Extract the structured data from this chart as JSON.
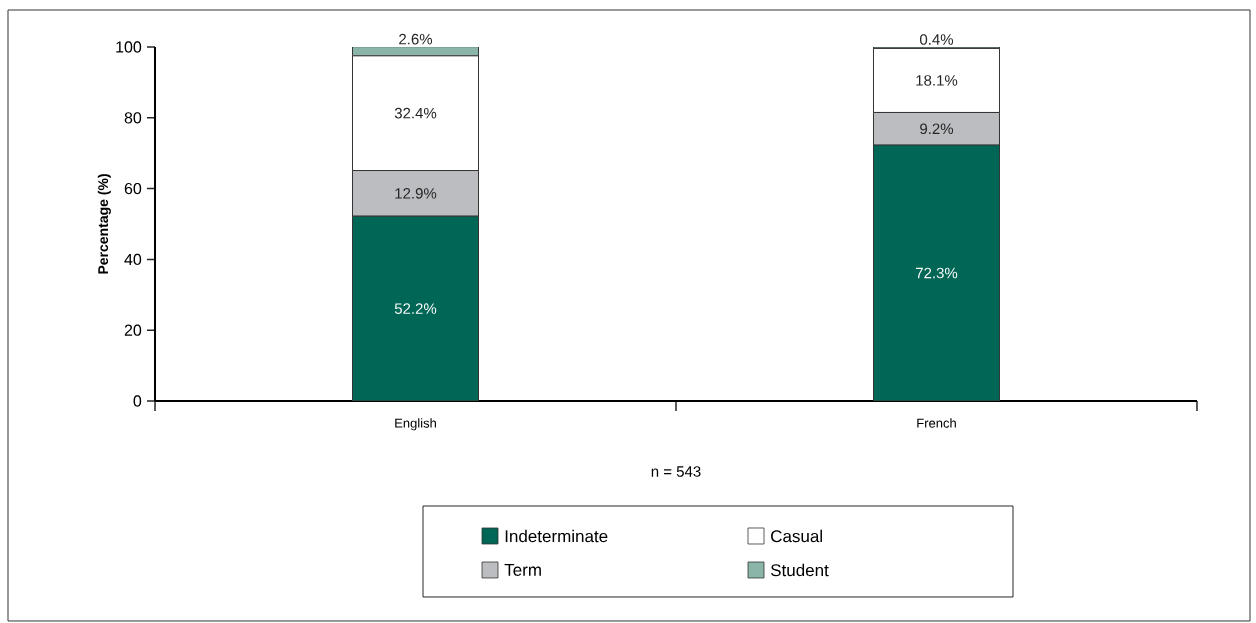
{
  "chart_data": {
    "type": "bar",
    "stacked": true,
    "categories": [
      "English",
      "French"
    ],
    "ylabel": "Percentage (%)",
    "xlabel": "n = 543",
    "ylim": [
      0,
      100
    ],
    "yticks": [
      0,
      20,
      40,
      60,
      80,
      100
    ],
    "legend": "bottom",
    "series": [
      {
        "name": "Indeterminate",
        "color": "#006655",
        "values": [
          52.2,
          72.3
        ],
        "value_labels": [
          "52.2%",
          "72.3%"
        ]
      },
      {
        "name": "Term",
        "color": "#bcbdc1",
        "values": [
          12.9,
          9.2
        ],
        "value_labels": [
          "12.9%",
          "9.2%"
        ]
      },
      {
        "name": "Casual",
        "color": "#ffffff",
        "values": [
          32.4,
          18.1
        ],
        "value_labels": [
          "32.4%",
          "18.1%"
        ]
      },
      {
        "name": "Student",
        "color": "#8ab5a8",
        "values": [
          2.6,
          0.4
        ],
        "value_labels": [
          "2.6%",
          "0.4%"
        ]
      }
    ]
  }
}
